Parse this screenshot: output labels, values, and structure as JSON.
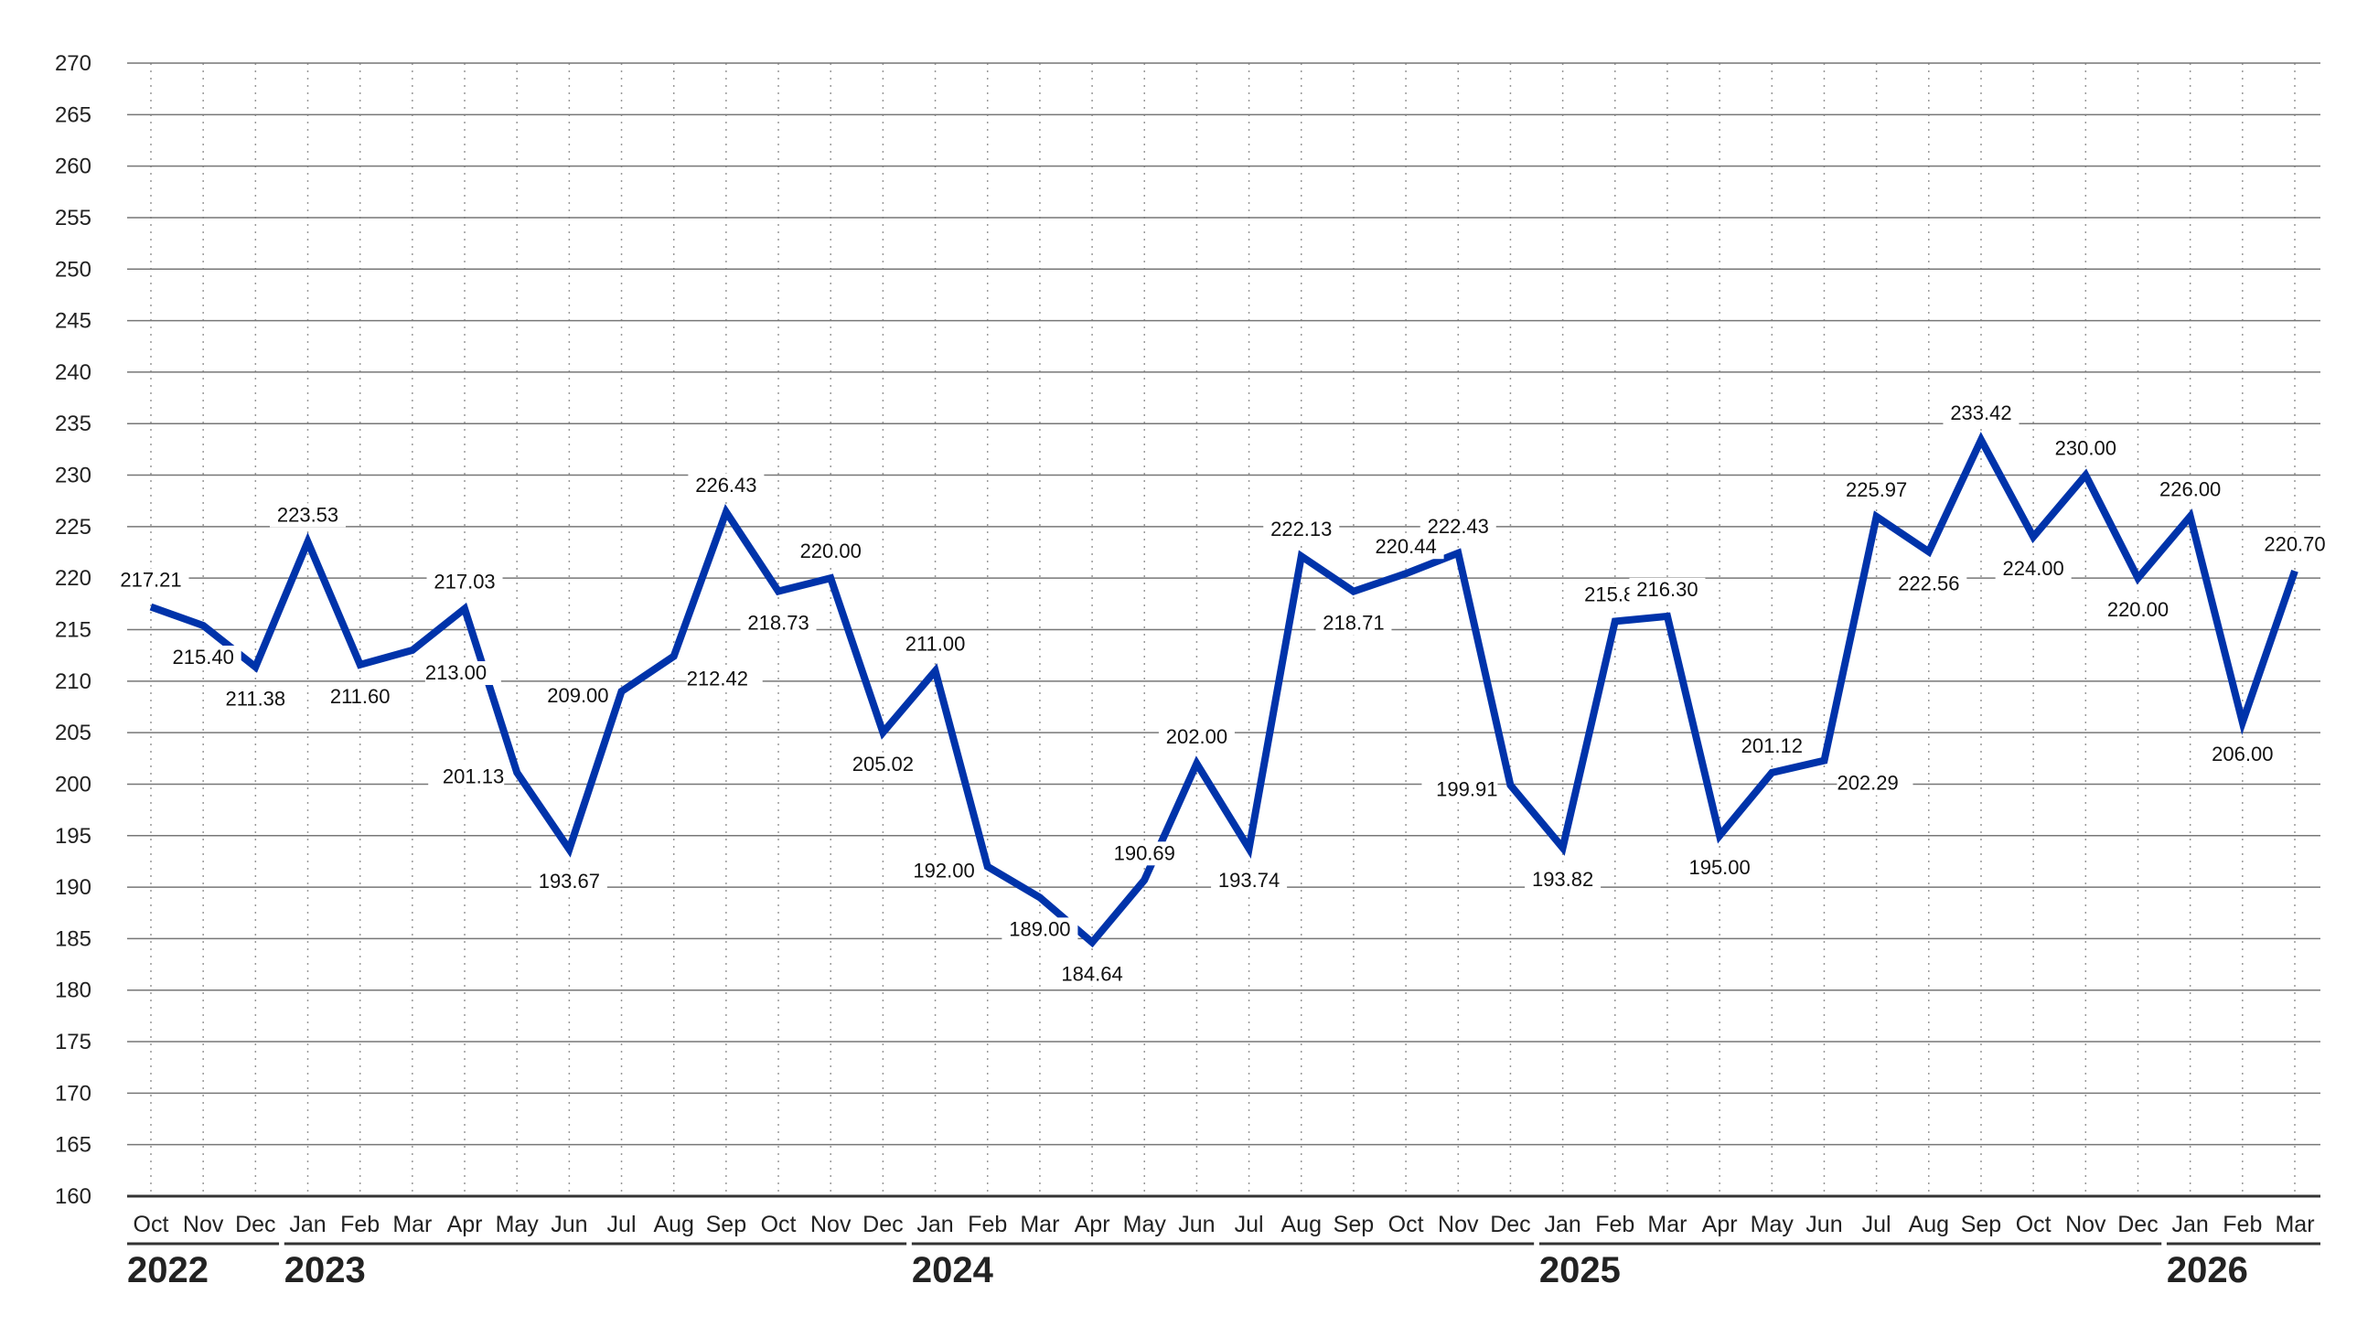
{
  "chart_data": {
    "type": "line",
    "title": "",
    "xlabel": "",
    "ylabel": "",
    "ylim": [
      160,
      270
    ],
    "yticks": [
      160,
      165,
      170,
      175,
      180,
      185,
      190,
      195,
      200,
      205,
      210,
      215,
      220,
      225,
      230,
      235,
      240,
      245,
      250,
      255,
      260,
      265,
      270
    ],
    "grid": true,
    "line_color": "#0033aa",
    "months": [
      "Oct",
      "Nov",
      "Dec",
      "Jan",
      "Feb",
      "Mar",
      "Apr",
      "May",
      "Jun",
      "Jul",
      "Aug",
      "Sep",
      "Oct",
      "Nov",
      "Dec",
      "Jan",
      "Feb",
      "Mar",
      "Apr",
      "May",
      "Jun",
      "Jul",
      "Aug",
      "Sep",
      "Oct",
      "Nov",
      "Dec",
      "Jan",
      "Feb",
      "Mar",
      "Apr",
      "May",
      "Jun",
      "Jul",
      "Aug",
      "Sep",
      "Oct",
      "Nov",
      "Dec",
      "Jan",
      "Feb",
      "Mar"
    ],
    "years": [
      {
        "label": "2022",
        "first": 0,
        "last": 2
      },
      {
        "label": "2023",
        "first": 3,
        "last": 14
      },
      {
        "label": "2024",
        "first": 15,
        "last": 26
      },
      {
        "label": "2025",
        "first": 27,
        "last": 38
      },
      {
        "label": "2026",
        "first": 39,
        "last": 41
      }
    ],
    "values": [
      217.21,
      215.4,
      211.38,
      223.53,
      211.6,
      213.0,
      217.03,
      201.13,
      193.67,
      209.0,
      212.42,
      226.43,
      218.73,
      220.0,
      205.02,
      211.0,
      192.0,
      189.0,
      184.64,
      190.69,
      202.0,
      193.74,
      222.13,
      218.71,
      220.44,
      222.43,
      199.91,
      193.82,
      215.81,
      216.3,
      195.0,
      201.12,
      202.29,
      225.97,
      222.56,
      233.42,
      224.0,
      230.0,
      220.0,
      226.0,
      206.0,
      220.7
    ],
    "data_labels": [
      "217.21",
      "215.40",
      "211.38",
      "223.53",
      "211.60",
      "213.00",
      "217.03",
      "201.13",
      "193.67",
      "209.00",
      "212.42",
      "226.43",
      "218.73",
      "220.00",
      "205.02",
      "211.00",
      "192.00",
      "189.00",
      "184.64",
      "190.69",
      "202.00",
      "193.74",
      "222.13",
      "218.71",
      "220.44",
      "222.43",
      "199.91",
      "193.82",
      "215.81",
      "216.30",
      "195.00",
      "201.12",
      "202.29",
      "225.97",
      "222.56",
      "233.42",
      "224.00",
      "230.00",
      "220.00",
      "226.00",
      "206.00",
      "220.70"
    ]
  }
}
